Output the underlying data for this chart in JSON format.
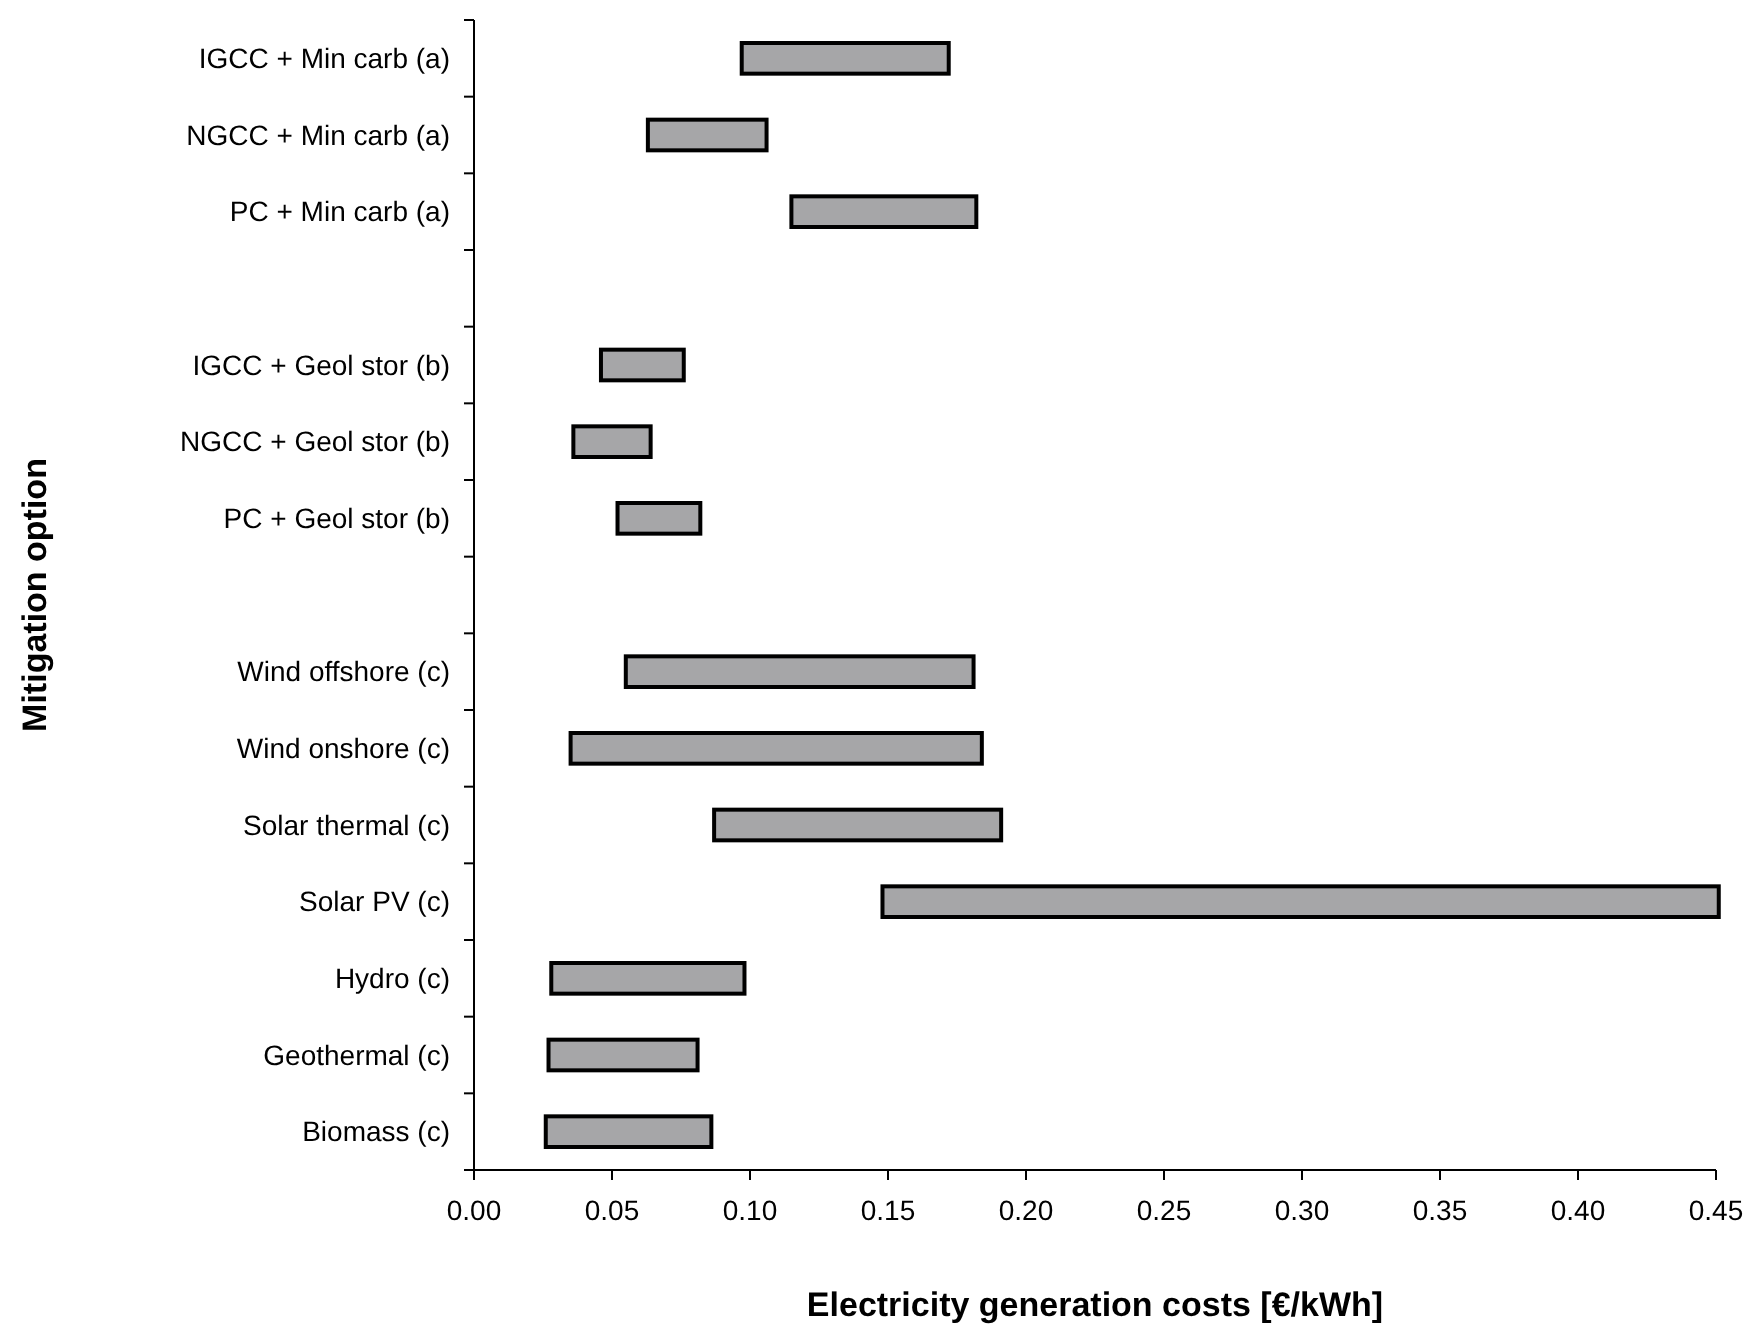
{
  "chart_data": {
    "type": "bar",
    "orientation": "horizontal",
    "xlabel": "Electricity generation costs [€/kWh]",
    "ylabel": "Mitigation option",
    "categories": [
      "IGCC + Min carb (a)",
      "NGCC + Min carb (a)",
      "PC + Min carb (a)",
      null,
      "IGCC + Geol stor (b)",
      "NGCC + Geol stor (b)",
      "PC + Geol stor (b)",
      null,
      "Wind offshore (c)",
      "Wind onshore (c)",
      "Solar thermal (c)",
      "Solar PV (c)",
      "Hydro (c)",
      "Geothermal (c)",
      "Biomass (c)"
    ],
    "base": [
      0.097,
      0.063,
      0.115,
      null,
      0.046,
      0.036,
      0.052,
      null,
      0.055,
      0.035,
      0.087,
      0.148,
      0.028,
      0.027,
      0.026
    ],
    "values": [
      0.075,
      0.043,
      0.067,
      null,
      0.03,
      0.028,
      0.03,
      null,
      0.126,
      0.149,
      0.104,
      0.303,
      0.07,
      0.054,
      0.06
    ],
    "color": "#a6a6a8",
    "xlim": [
      0,
      0.45
    ],
    "xticks": [
      {
        "value": 0,
        "label": "0.00"
      },
      {
        "value": 0.05,
        "label": "0.05"
      },
      {
        "value": 0.1,
        "label": "0.10"
      },
      {
        "value": 0.15,
        "label": "0.15"
      },
      {
        "value": 0.2,
        "label": "0.20"
      },
      {
        "value": 0.25,
        "label": "0.25"
      },
      {
        "value": 0.3,
        "label": "0.30"
      },
      {
        "value": 0.35,
        "label": "0.35"
      },
      {
        "value": 0.4,
        "label": "0.40"
      },
      {
        "value": 0.45,
        "label": "0.45"
      }
    ]
  }
}
